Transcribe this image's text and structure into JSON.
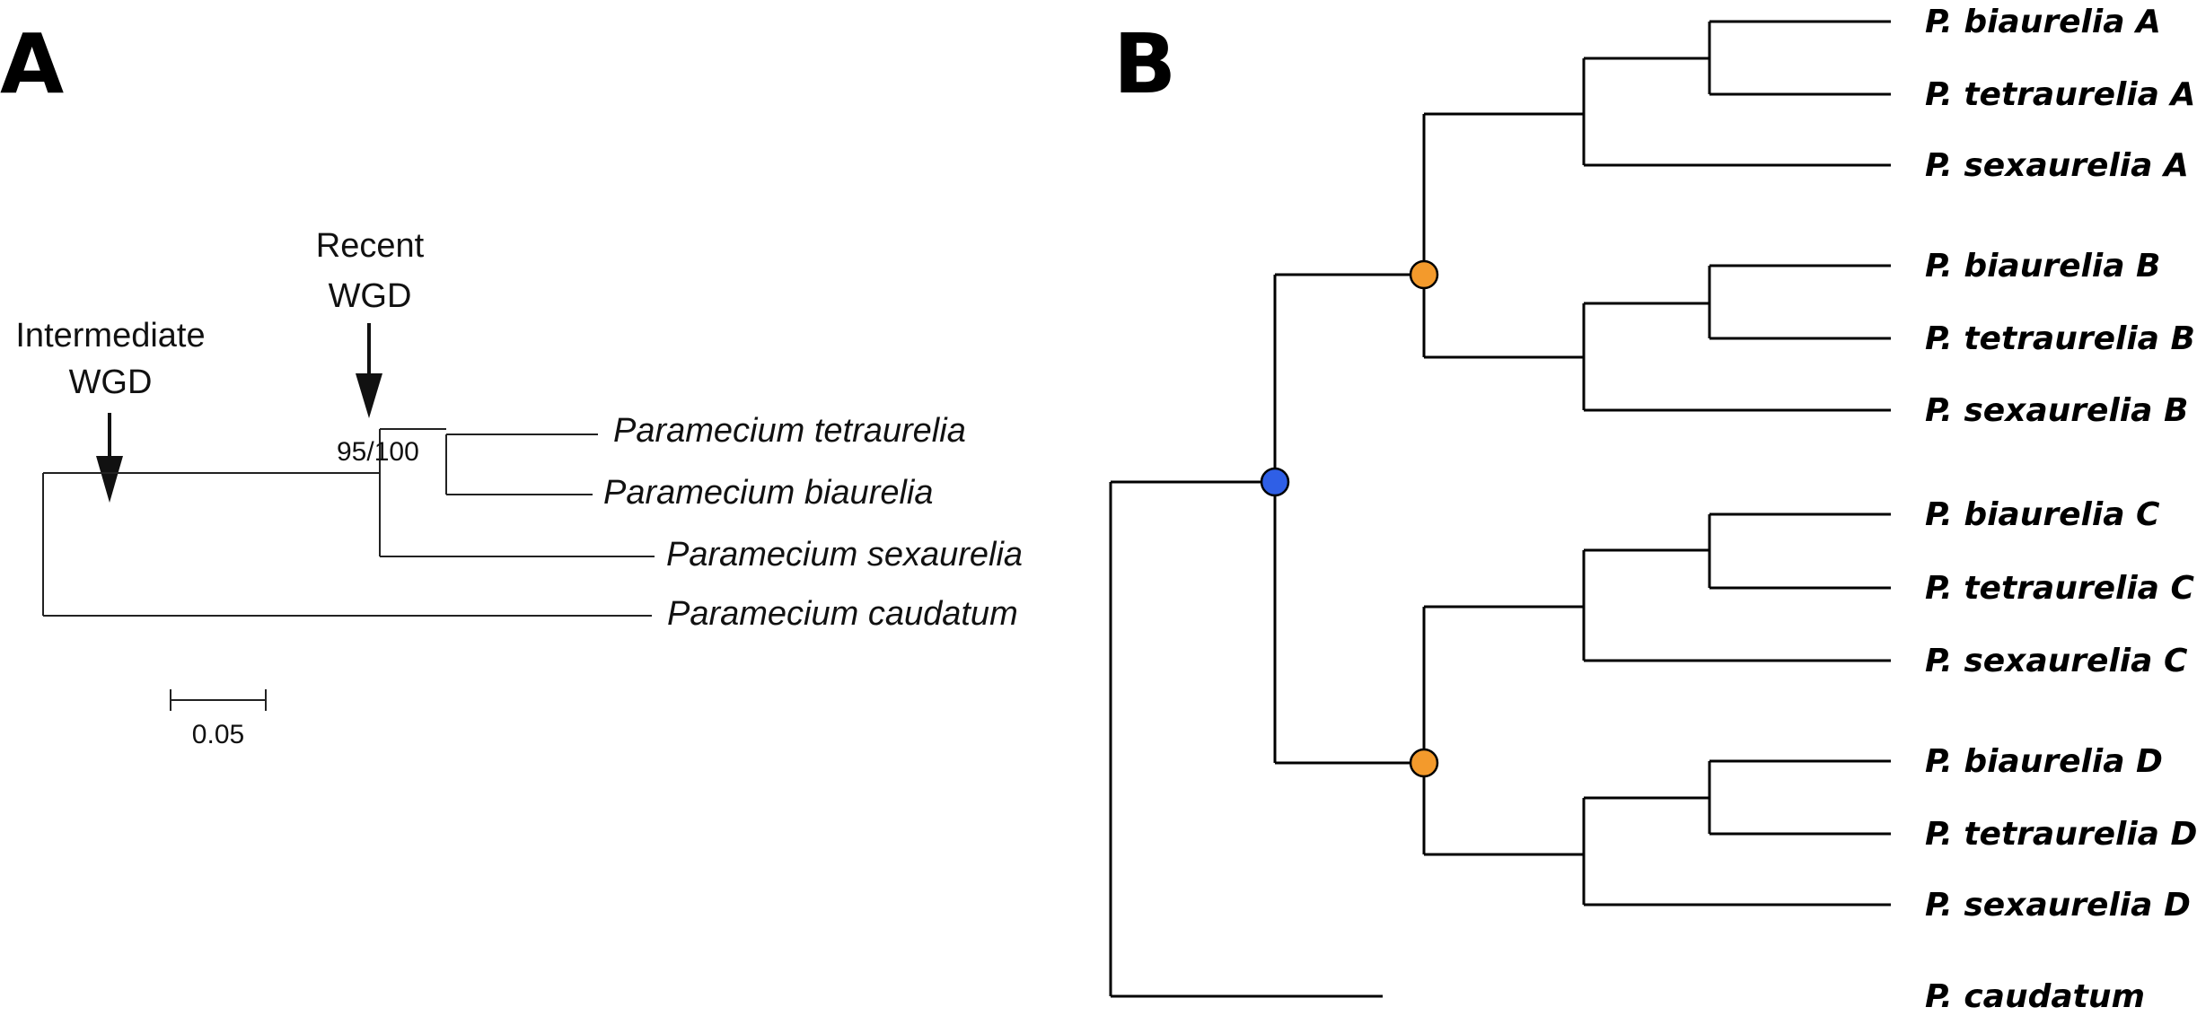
{
  "panel_a": {
    "label": "A",
    "annotations": {
      "intermediate": [
        "Intermediate",
        "WGD"
      ],
      "recent": [
        "Recent",
        "WGD"
      ]
    },
    "support": "95/100",
    "taxa": [
      "Paramecium tetraurelia",
      "Paramecium biaurelia",
      "Paramecium sexaurelia",
      "Paramecium caudatum"
    ],
    "scale_bar": "0.05"
  },
  "panel_b": {
    "label": "B",
    "taxa": [
      "P. biaurelia A",
      "P. tetraurelia A",
      "P. sexaurelia A",
      "P. biaurelia B",
      "P. tetraurelia B",
      "P. sexaurelia B",
      "P. biaurelia C",
      "P. tetraurelia C",
      "P. sexaurelia C",
      "P. biaurelia D",
      "P. tetraurelia D",
      "P. sexaurelia D",
      "P. caudatum"
    ],
    "node_colors": {
      "root_wgd": "#2f5fe6",
      "recent_wgd": "#f39a2c"
    }
  }
}
